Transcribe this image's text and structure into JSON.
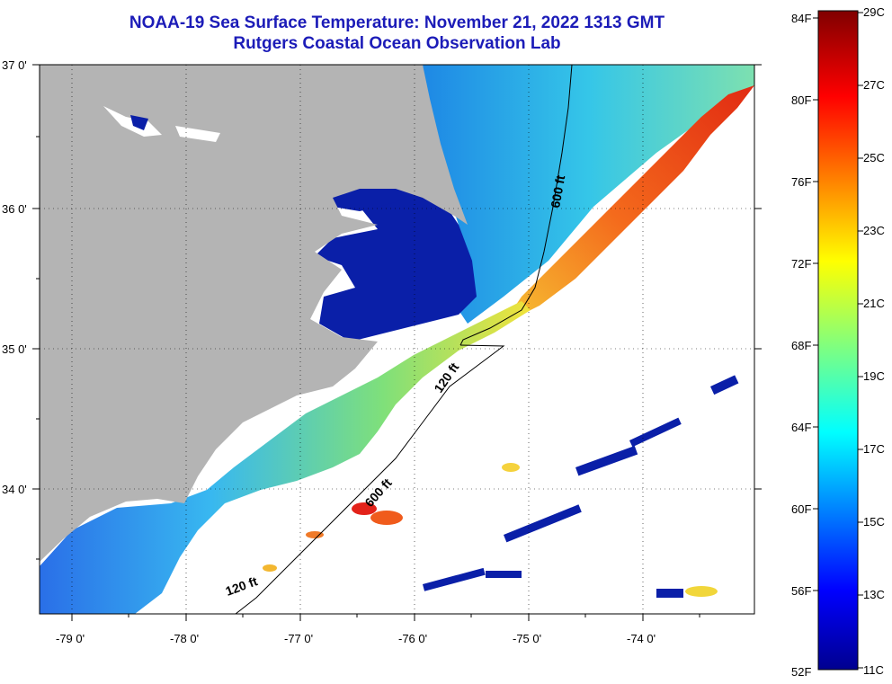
{
  "title": {
    "line1": "NOAA-19 Sea Surface Temperature:  November 21, 2022 1313 GMT",
    "line2": "Rutgers Coastal Ocean Observation Lab"
  },
  "map": {
    "lat_labels": [
      "37 0'",
      "36 0'",
      "35 0'",
      "34 0'"
    ],
    "lon_labels": [
      "-79 0'",
      "-78 0'",
      "-77 0'",
      "-76 0'",
      "-75 0'",
      "-74 0'"
    ],
    "isobath_labels": [
      "600 ft",
      "120 ft",
      "600 ft",
      "120 ft"
    ],
    "colors": {
      "land": "#b4b4b4",
      "no_data": "#ffffff",
      "sound_water": "#0a1fa8"
    }
  },
  "colorbar": {
    "fahrenheit_labels": [
      "84F",
      "80F",
      "76F",
      "72F",
      "68F",
      "64F",
      "60F",
      "56F",
      "52F"
    ],
    "celsius_labels": [
      "29C",
      "27C",
      "25C",
      "23C",
      "21C",
      "19C",
      "17C",
      "15C",
      "13C",
      "11C"
    ],
    "range_celsius": [
      11,
      29
    ],
    "range_fahrenheit": [
      52,
      84
    ],
    "colormap": "jet"
  }
}
